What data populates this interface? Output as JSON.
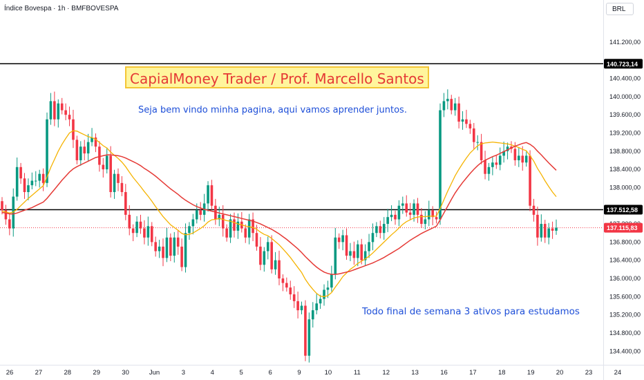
{
  "header": {
    "title": "Índice Bovespa · 1h · BMFBOVESPA",
    "currency": "BRL"
  },
  "annotations": {
    "banner": "CapialMoney Trader / Prof. Marcello Santos",
    "welcome": "Seja bem vindo minha pagina, aqui vamos aprender juntos.",
    "weekend": "Todo final de semana 3 ativos para estudamos"
  },
  "colors": {
    "up": "#089981",
    "down": "#f23645",
    "ma_fast": "#f5b301",
    "ma_slow": "#e53935",
    "hline": "#000000",
    "price_tag": "#f23645",
    "banner_text": "#e53935",
    "note_text": "#1e4fd8"
  },
  "chart_data": {
    "type": "candlestick",
    "ylim": [
      134100,
      141700
    ],
    "y_ticks": [
      "134.400,00",
      "134.800,00",
      "135.200,00",
      "135.600,00",
      "136.000,00",
      "136.400,00",
      "136.800,00",
      "137.200,00",
      "138.000,00",
      "138.400,00",
      "138.800,00",
      "139.200,00",
      "139.600,00",
      "140.000,00",
      "140.400,00",
      "141.200,00"
    ],
    "x_ticks": [
      "26",
      "27",
      "28",
      "29",
      "30",
      "Jun",
      "3",
      "4",
      "5",
      "6",
      "9",
      "10",
      "11",
      "12",
      "13",
      "16",
      "17",
      "18",
      "19",
      "20",
      "23",
      "24"
    ],
    "grid": false,
    "horizontal_lines": [
      {
        "value": 140723.14,
        "label": "140.723,14"
      },
      {
        "value": 137512.58,
        "label": "137.512,58"
      }
    ],
    "last_price": {
      "value": 137115.83,
      "label": "137.115,83"
    },
    "series": [
      {
        "name": "close",
        "values": [
          137500,
          137300,
          137100,
          137800,
          138450,
          138200,
          137900,
          138050,
          138150,
          138150,
          138300,
          138100,
          139500,
          139900,
          139500,
          139850,
          139700,
          139600,
          139500,
          139050,
          138600,
          138900,
          138750,
          139000,
          139100,
          138900,
          138500,
          138400,
          138700,
          137900,
          138300,
          138100,
          137900,
          137400,
          137100,
          137000,
          137250,
          137100,
          136900,
          137150,
          136800,
          136600,
          136700,
          136450,
          136900,
          136500,
          136900,
          136700,
          136250,
          137000,
          137150,
          137300,
          137500,
          137400,
          137650,
          138050,
          137600,
          137300,
          137400,
          137100,
          136900,
          137300,
          137050,
          137250,
          137100,
          136900,
          137300,
          137000,
          136700,
          136300,
          136600,
          136800,
          136200,
          136400,
          136000,
          135900,
          135800,
          135650,
          135500,
          135300,
          135400,
          134300,
          135100,
          135300,
          135450,
          135550,
          135750,
          135800,
          136100,
          136900,
          136800,
          136950,
          136500,
          136600,
          136450,
          136750,
          136400,
          136600,
          136800,
          137000,
          137150,
          137000,
          137200,
          137350,
          137400,
          137300,
          137600,
          137650,
          137450,
          137400,
          137650,
          137400,
          137200,
          137300,
          137500,
          137350,
          137300,
          139700,
          139900,
          139950,
          139700,
          139850,
          139450,
          139500,
          139400,
          139300,
          139000,
          139000,
          138600,
          138300,
          138450,
          138550,
          138500,
          138700,
          138800,
          138900,
          138850,
          138600,
          138700,
          138550,
          138700,
          137600,
          137400,
          136900,
          137200,
          136900,
          137100,
          137050,
          137116
        ]
      },
      {
        "name": "ma_fast",
        "values": [
          137480,
          137460,
          137440,
          137460,
          137520,
          137600,
          137680,
          137760,
          137830,
          137900,
          137970,
          138040,
          138230,
          138440,
          138620,
          138800,
          138950,
          139080,
          139200,
          139250,
          139240,
          139200,
          139160,
          139120,
          139100,
          139060,
          138990,
          138920,
          138870,
          138780,
          138710,
          138640,
          138560,
          138460,
          138340,
          138220,
          138120,
          138020,
          137910,
          137810,
          137700,
          137580,
          137470,
          137360,
          137270,
          137180,
          137120,
          137060,
          136990,
          136960,
          136970,
          137000,
          137050,
          137100,
          137160,
          137240,
          137290,
          137300,
          137320,
          137300,
          137270,
          137260,
          137230,
          137200,
          137180,
          137150,
          137140,
          137120,
          137080,
          137020,
          136970,
          136940,
          136880,
          136810,
          136740,
          136650,
          136560,
          136460,
          136350,
          136240,
          136130,
          135980,
          135860,
          135760,
          135670,
          135610,
          135600,
          135620,
          135690,
          135810,
          135920,
          136040,
          136120,
          136200,
          136260,
          136330,
          136380,
          136430,
          136490,
          136560,
          136640,
          136720,
          136800,
          136880,
          136960,
          137030,
          137110,
          137190,
          137250,
          137290,
          137330,
          137350,
          137360,
          137360,
          137370,
          137370,
          137370,
          137540,
          137730,
          137920,
          138090,
          138260,
          138400,
          138530,
          138650,
          138760,
          138840,
          138920,
          138960,
          138980,
          138990,
          139000,
          138990,
          138980,
          138970,
          138960,
          138940,
          138910,
          138880,
          138840,
          138810,
          138700,
          138580,
          138420,
          138290,
          138150,
          138020,
          137900,
          137800
        ]
      },
      {
        "name": "ma_slow",
        "values": [
          137450,
          137440,
          137420,
          137420,
          137440,
          137470,
          137500,
          137530,
          137560,
          137600,
          137640,
          137680,
          137760,
          137860,
          137960,
          138060,
          138160,
          138250,
          138340,
          138410,
          138460,
          138500,
          138540,
          138580,
          138620,
          138660,
          138680,
          138700,
          138720,
          138720,
          138710,
          138700,
          138680,
          138650,
          138610,
          138570,
          138530,
          138480,
          138420,
          138370,
          138310,
          138250,
          138180,
          138110,
          138040,
          137970,
          137910,
          137850,
          137780,
          137720,
          137670,
          137620,
          137580,
          137550,
          137520,
          137500,
          137480,
          137460,
          137440,
          137420,
          137400,
          137380,
          137360,
          137340,
          137320,
          137300,
          137280,
          137260,
          137230,
          137200,
          137160,
          137120,
          137080,
          137030,
          136980,
          136920,
          136860,
          136790,
          136720,
          136650,
          136570,
          136480,
          136400,
          136320,
          136250,
          136190,
          136140,
          136110,
          136090,
          136090,
          136100,
          136120,
          136140,
          136160,
          136190,
          136220,
          136250,
          136280,
          136310,
          136340,
          136380,
          136420,
          136460,
          136510,
          136560,
          136610,
          136660,
          136720,
          136780,
          136840,
          136890,
          136940,
          136990,
          137030,
          137070,
          137110,
          137150,
          137290,
          137440,
          137590,
          137740,
          137880,
          138000,
          138110,
          138210,
          138310,
          138400,
          138480,
          138550,
          138600,
          138640,
          138680,
          138710,
          138750,
          138790,
          138830,
          138870,
          138910,
          138940,
          138970,
          138990,
          138950,
          138890,
          138800,
          138720,
          138630,
          138540,
          138460,
          138380
        ]
      }
    ]
  }
}
